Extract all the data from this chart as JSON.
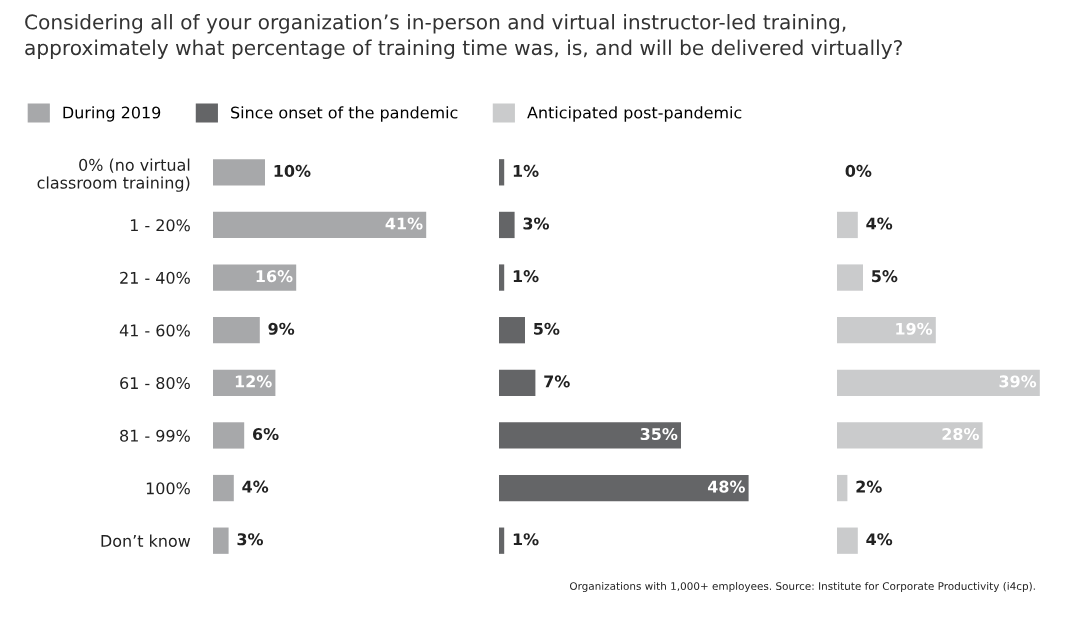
{
  "chart_data": [
    {
      "type": "bar",
      "orientation": "horizontal",
      "title": "Considering all of your organization’s in-person and virtual instructor-led training,\napproximately what percentage of training time was, is, and will be delivered virtually?",
      "legend": "top",
      "tick_labels": "y",
      "categories": [
        "0% (no virtual\nclassroom training)",
        "1 - 20%",
        "21 - 40%",
        "41 - 60%",
        "61 - 80%",
        "81 - 99%",
        "100%",
        "Don’t know"
      ],
      "series": [
        {
          "name": "During 2019",
          "color": "#a7a8aa",
          "values": [
            10,
            41,
            16,
            9,
            12,
            6,
            4,
            3
          ],
          "value_labels": [
            "10%",
            "41%",
            "16%",
            "9%",
            "12%",
            "6%",
            "4%",
            "3%"
          ]
        }
      ]
    },
    {
      "type": "bar",
      "orientation": "horizontal",
      "legend": "top",
      "tick_labels": false,
      "categories": [
        null,
        null,
        null,
        null,
        null,
        null,
        null,
        null
      ],
      "series": [
        {
          "name": "Since onset of the pandemic",
          "color": "#646567",
          "values": [
            1,
            3,
            1,
            5,
            7,
            35,
            48,
            1
          ],
          "value_labels": [
            "1%",
            "3%",
            "1%",
            "5%",
            "7%",
            "35%",
            "48%",
            "1%"
          ]
        }
      ]
    },
    {
      "type": "bar",
      "orientation": "horizontal",
      "legend": "top",
      "tick_labels": false,
      "annotations": [
        "Organizations with 1,000+ employees. Source: Institute for Corporate Productivity (i4cp)."
      ],
      "categories": [
        null,
        null,
        null,
        null,
        null,
        null,
        null,
        null
      ],
      "series": [
        {
          "name": "Anticipated post-pandemic",
          "color": "#cacbcc",
          "values": [
            0,
            4,
            5,
            19,
            39,
            28,
            2,
            4
          ],
          "value_labels": [
            "0%",
            "4%",
            "5%",
            "19%",
            "39%",
            "28%",
            "2%",
            "4%"
          ]
        }
      ]
    }
  ]
}
